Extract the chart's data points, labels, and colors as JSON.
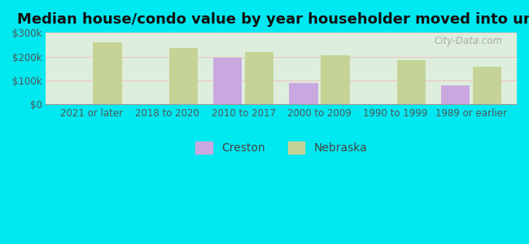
{
  "title": "Median house/condo value by year householder moved into unit",
  "categories": [
    "2021 or later",
    "2018 to 2020",
    "2010 to 2017",
    "2000 to 2009",
    "1990 to 1999",
    "1989 or earlier"
  ],
  "creston_values": [
    null,
    null,
    195000,
    88000,
    null,
    80000
  ],
  "nebraska_values": [
    258000,
    235000,
    220000,
    205000,
    185000,
    158000
  ],
  "creston_color": "#c9a8e0",
  "nebraska_color": "#c5d496",
  "background_outer": "#00e8f0",
  "ylim": [
    0,
    300000
  ],
  "yticks": [
    0,
    100000,
    200000,
    300000
  ],
  "bar_width": 0.38,
  "legend_creston": "Creston",
  "legend_nebraska": "Nebraska",
  "title_fontsize": 13,
  "tick_fontsize": 8.5,
  "legend_fontsize": 10,
  "watermark": "City-Data.com"
}
